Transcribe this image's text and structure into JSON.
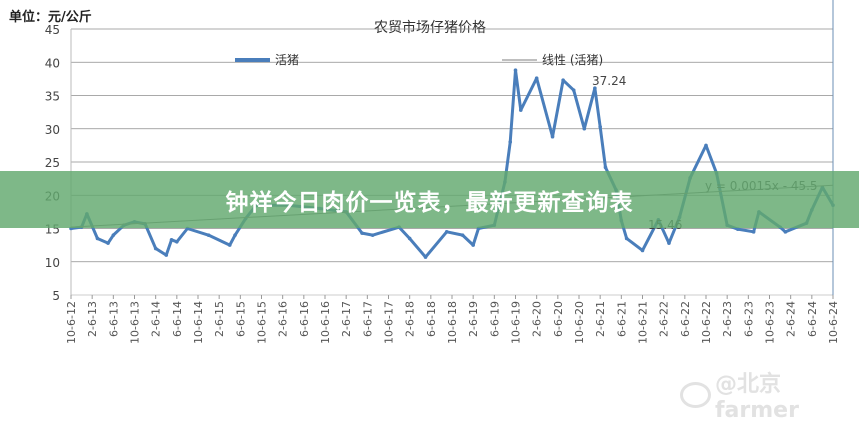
{
  "unit_label": "单位：元/公斤",
  "banner_text": "钟祥今日肉价一览表，最新更新查询表",
  "watermark": "@北京farmer",
  "colors": {
    "series": "#4a7ebb",
    "trendline": "#7f7f7f",
    "banner": "#62a86e",
    "grid": "#8c8c8c"
  },
  "chart_data": {
    "type": "line",
    "title": "农贸市场仔猪价格",
    "ylabel": "单位：元/公斤",
    "ylim": [
      5,
      45
    ],
    "yticks": [
      5,
      10,
      15,
      20,
      25,
      30,
      35,
      40,
      45
    ],
    "grid": true,
    "legend_position": "top",
    "xtick_labels": [
      "10-6-12",
      "2-6-13",
      "6-6-13",
      "10-6-13",
      "2-6-14",
      "6-6-14",
      "10-6-14",
      "2-6-15",
      "6-6-15",
      "10-6-15",
      "2-6-16",
      "6-6-16",
      "10-6-16",
      "2-6-17",
      "6-6-17",
      "10-6-17",
      "2-6-18",
      "6-6-18",
      "10-6-18",
      "2-6-19",
      "6-6-19",
      "10-6-19",
      "2-6-20",
      "6-6-20",
      "10-6-20",
      "2-6-21",
      "6-6-21",
      "10-6-21",
      "2-6-22",
      "6-6-22",
      "10-6-22",
      "2-6-23",
      "6-6-23",
      "10-6-23",
      "2-6-24",
      "6-6-24",
      "10-6-24"
    ],
    "series": [
      {
        "name": "活猪",
        "x": [
          "2012-10",
          "2012-12",
          "2013-01",
          "2013-03",
          "2013-05",
          "2013-06",
          "2013-08",
          "2013-10",
          "2013-12",
          "2014-02",
          "2014-04",
          "2014-05",
          "2014-06",
          "2014-08",
          "2014-12",
          "2015-04",
          "2015-05",
          "2015-07",
          "2015-09",
          "2016-03",
          "2016-09",
          "2017-02",
          "2017-05",
          "2017-07",
          "2017-12",
          "2018-02",
          "2018-05",
          "2018-09",
          "2018-12",
          "2019-02",
          "2019-03",
          "2019-06",
          "2019-08",
          "2019-09",
          "2019-10",
          "2019-11",
          "2020-02",
          "2020-05",
          "2020-07",
          "2020-09",
          "2020-11",
          "2021-01",
          "2021-02",
          "2021-03",
          "2021-05",
          "2021-06",
          "2021-07",
          "2021-10",
          "2022-01",
          "2022-03",
          "2022-05",
          "2022-07",
          "2022-10",
          "2022-12",
          "2023-02",
          "2023-04",
          "2023-07",
          "2023-08",
          "2023-12",
          "2024-01",
          "2024-05",
          "2024-06",
          "2024-08",
          "2024-10"
        ],
        "values": [
          15.0,
          15.2,
          17.2,
          13.5,
          12.8,
          14.0,
          15.5,
          16.0,
          15.7,
          12.0,
          11.0,
          13.3,
          13.0,
          15.0,
          14.0,
          12.5,
          14.0,
          16.5,
          18.5,
          18.5,
          18.0,
          17.5,
          14.3,
          14.0,
          15.2,
          13.5,
          10.7,
          14.5,
          14.0,
          12.5,
          15.0,
          15.5,
          22.0,
          28.0,
          38.8,
          32.8,
          37.6,
          28.8,
          37.3,
          35.8,
          30.0,
          36.1,
          30.3,
          24.2,
          20.8,
          16.2,
          13.5,
          11.7,
          16.3,
          12.8,
          16.7,
          22.6,
          27.5,
          23.3,
          15.5,
          14.9,
          14.5,
          17.5,
          15.2,
          14.5,
          15.8,
          17.8,
          21.2,
          18.5
        ]
      },
      {
        "name": "线性 (活猪)",
        "type": "trendline",
        "x": [
          "2012-10",
          "2024-10"
        ],
        "values": [
          15.2,
          21.5
        ],
        "equation": "y = 0.0015x - 45.5"
      }
    ],
    "annotations": [
      "37.24",
      "15.46"
    ]
  }
}
